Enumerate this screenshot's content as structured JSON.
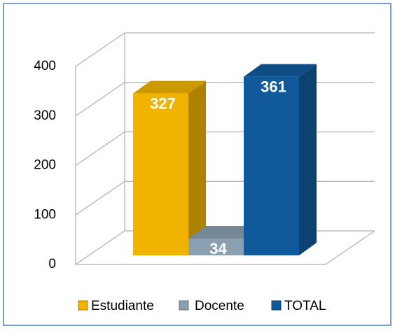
{
  "chart_data": {
    "type": "bar3d",
    "categories": [
      "Estudiante",
      "Docente",
      "TOTAL"
    ],
    "values": [
      327,
      34,
      361
    ],
    "colors": [
      "#f0b400",
      "#8aa0b0",
      "#105a9c"
    ],
    "ylim": [
      0,
      400
    ],
    "yticks": [
      0,
      100,
      200,
      300,
      400
    ],
    "grid": true,
    "legend": "bottom"
  }
}
